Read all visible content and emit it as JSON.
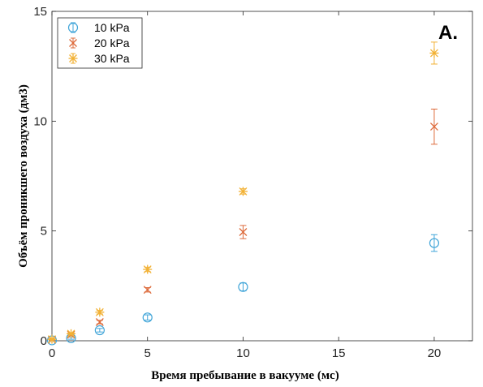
{
  "chart_data": {
    "type": "scatter",
    "title": "",
    "panel_label": "A.",
    "xlabel": "Время пребывание в вакууме (мс)",
    "ylabel": "Объём проникшего воздуха (дм3)",
    "xlim": [
      0,
      22
    ],
    "ylim": [
      0,
      15
    ],
    "xticks": [
      0,
      5,
      10,
      15,
      20
    ],
    "xtick_labels": [
      "0",
      "5",
      "10",
      "15",
      "20"
    ],
    "yticks": [
      0,
      5,
      10,
      15
    ],
    "ytick_labels": [
      "0",
      "5",
      "10",
      "15"
    ],
    "grid": false,
    "legend_position": "top-left",
    "series": [
      {
        "name": "10 kPa",
        "color": "#3fa4d8",
        "marker": "circle",
        "x": [
          0,
          1,
          2.5,
          5,
          10,
          20
        ],
        "y": [
          0.02,
          0.12,
          0.48,
          1.06,
          2.45,
          4.45
        ],
        "err": [
          0.02,
          0.05,
          0.08,
          0.12,
          0.18,
          0.38
        ]
      },
      {
        "name": "20 kPa",
        "color": "#dd6b3c",
        "marker": "x",
        "x": [
          0,
          1,
          2.5,
          5,
          10,
          20
        ],
        "y": [
          0.05,
          0.28,
          0.85,
          2.32,
          4.95,
          9.75
        ],
        "err": [
          0.02,
          0.05,
          0.08,
          0.1,
          0.3,
          0.8
        ]
      },
      {
        "name": "30 kPa",
        "color": "#f2b134",
        "marker": "asterisk",
        "x": [
          0,
          1,
          2.5,
          5,
          10,
          20
        ],
        "y": [
          0.07,
          0.32,
          1.3,
          3.25,
          6.8,
          13.1
        ],
        "err": [
          0.02,
          0.05,
          0.08,
          0.1,
          0.12,
          0.5
        ]
      }
    ]
  }
}
